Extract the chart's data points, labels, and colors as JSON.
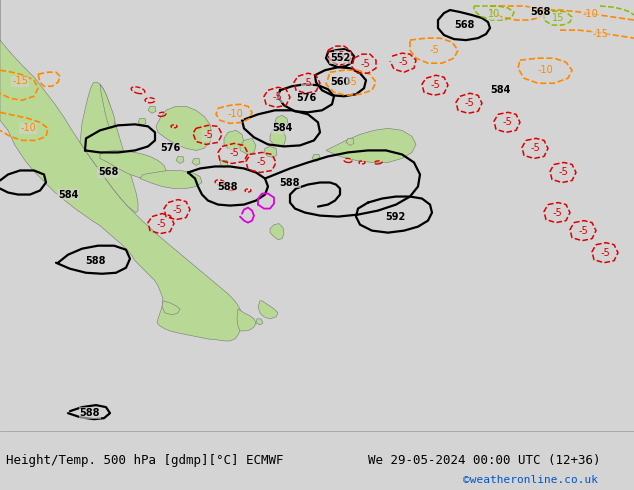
{
  "title_left": "Height/Temp. 500 hPa [gdmp][°C] ECMWF",
  "title_right": "We 29-05-2024 00:00 UTC (12+36)",
  "watermark": "©weatheronline.co.uk",
  "bg_ocean": "#d4d4d4",
  "land_green": "#b8d896",
  "land_gray": "#c0c0c0",
  "clr_black": "#000000",
  "clr_orange": "#ff8800",
  "clr_red": "#dd0000",
  "clr_magenta": "#dd00dd",
  "clr_lime": "#88bb00",
  "clr_white": "#ffffff",
  "bottom_bg": "#d8d8d8",
  "watermark_color": "#0055cc",
  "font_size_label": 9,
  "font_size_contour": 7,
  "font_size_watermark": 8
}
